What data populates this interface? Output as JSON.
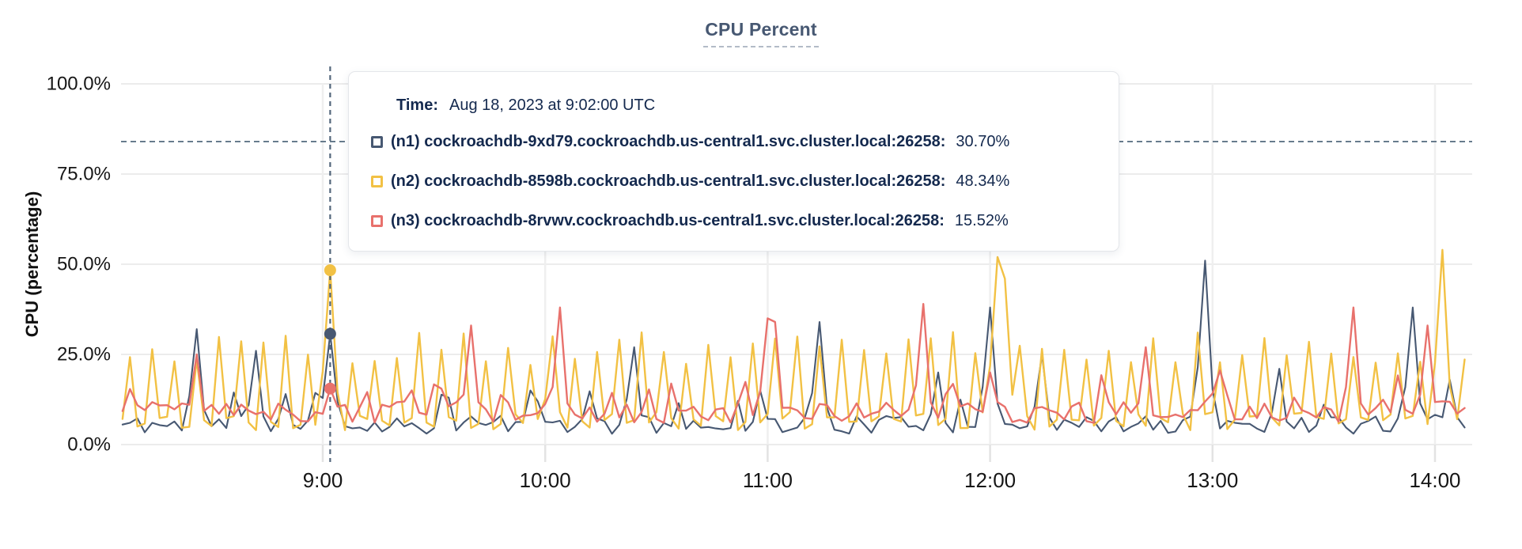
{
  "title": {
    "text": "CPU Percent"
  },
  "y_axis_label": "CPU (percentage)",
  "tooltip": {
    "time_label": "Time:",
    "time_value": "Aug 18, 2023 at 9:02:00 UTC",
    "rows": [
      {
        "id": "n1",
        "name": "(n1) cockroachdb-9xd79.cockroachdb.us-central1.svc.cluster.local:26258:",
        "value": "30.70%",
        "color": "#475872"
      },
      {
        "id": "n2",
        "name": "(n2) cockroachdb-8598b.cockroachdb.us-central1.svc.cluster.local:26258:",
        "value": "48.34%",
        "color": "#F2C144"
      },
      {
        "id": "n3",
        "name": "(n3) cockroachdb-8rvwv.cockroachdb.us-central1.svc.cluster.local:26258:",
        "value": "15.52%",
        "color": "#E8716C"
      }
    ]
  },
  "chart_data": {
    "type": "line",
    "title": "CPU Percent",
    "xlabel": "",
    "ylabel": "CPU (percentage)",
    "ylim": [
      0,
      100
    ],
    "grid": true,
    "legend_position": "tooltip-overlay",
    "y_ticks": [
      {
        "label": "0.0%",
        "value": 0
      },
      {
        "label": "25.0%",
        "value": 25
      },
      {
        "label": "50.0%",
        "value": 50
      },
      {
        "label": "75.0%",
        "value": 75
      },
      {
        "label": "100.0%",
        "value": 100
      }
    ],
    "x_ticks": [
      {
        "label": "9:00",
        "minutes": 540
      },
      {
        "label": "10:00",
        "minutes": 600
      },
      {
        "label": "11:00",
        "minutes": 660
      },
      {
        "label": "12:00",
        "minutes": 720
      },
      {
        "label": "13:00",
        "minutes": 780
      },
      {
        "label": "14:00",
        "minutes": 840
      }
    ],
    "time_start": "8:06",
    "time_end": "14:08",
    "step_minutes": 2,
    "threshold_percent": 84,
    "marker": {
      "time": "9:02",
      "values": {
        "n1": 30.7,
        "n2": 48.34,
        "n3": 15.52
      }
    },
    "series": [
      {
        "id": "n1",
        "name": "(n1) cockroachdb-9xd79.cockroachdb.us-central1.svc.cluster.local:26258",
        "color": "#475872",
        "line_width": 2.1,
        "seed": 11,
        "baseline": [
          3,
          8
        ],
        "bump_probability": 0.08,
        "bump_add": [
          5,
          12
        ],
        "anchors": [
          [
            "8:26",
            32
          ],
          [
            "8:42",
            26
          ],
          [
            "9:02",
            30.7
          ],
          [
            "9:34",
            13
          ],
          [
            "9:56",
            15
          ],
          [
            "10:24",
            27
          ],
          [
            "10:58",
            15
          ],
          [
            "11:14",
            34
          ],
          [
            "11:46",
            20
          ],
          [
            "12:00",
            38
          ],
          [
            "12:14",
            25
          ],
          [
            "12:58",
            51
          ],
          [
            "13:18",
            21
          ],
          [
            "13:54",
            38
          ],
          [
            "14:04",
            18
          ]
        ]
      },
      {
        "id": "n2",
        "name": "(n2) cockroachdb-8598b.cockroachdb.us-central1.svc.cluster.local:26258",
        "color": "#F2C144",
        "line_width": 2.4,
        "seed": 22,
        "baseline": [
          4,
          9
        ],
        "spike_every_min": 6,
        "spike_phase_min": 2,
        "spike_range": [
          22,
          32
        ],
        "anchors": [
          [
            "9:02",
            48.34
          ],
          [
            "10:02",
            30
          ],
          [
            "12:02",
            52
          ],
          [
            "12:04",
            46
          ],
          [
            "14:02",
            54
          ]
        ]
      },
      {
        "id": "n3",
        "name": "(n3) cockroachdb-8rvwv.cockroachdb.us-central1.svc.cluster.local:26258",
        "color": "#E8716C",
        "line_width": 2.4,
        "seed": 33,
        "baseline": [
          6,
          12
        ],
        "bump_probability": 0.1,
        "bump_add": [
          3,
          9
        ],
        "anchors": [
          [
            "8:26",
            25
          ],
          [
            "9:02",
            15.52
          ],
          [
            "9:40",
            33
          ],
          [
            "10:04",
            38
          ],
          [
            "11:00",
            35
          ],
          [
            "11:02",
            34
          ],
          [
            "11:42",
            39
          ],
          [
            "12:00",
            20
          ],
          [
            "12:42",
            27
          ],
          [
            "13:38",
            38
          ],
          [
            "13:58",
            33
          ]
        ]
      }
    ]
  }
}
